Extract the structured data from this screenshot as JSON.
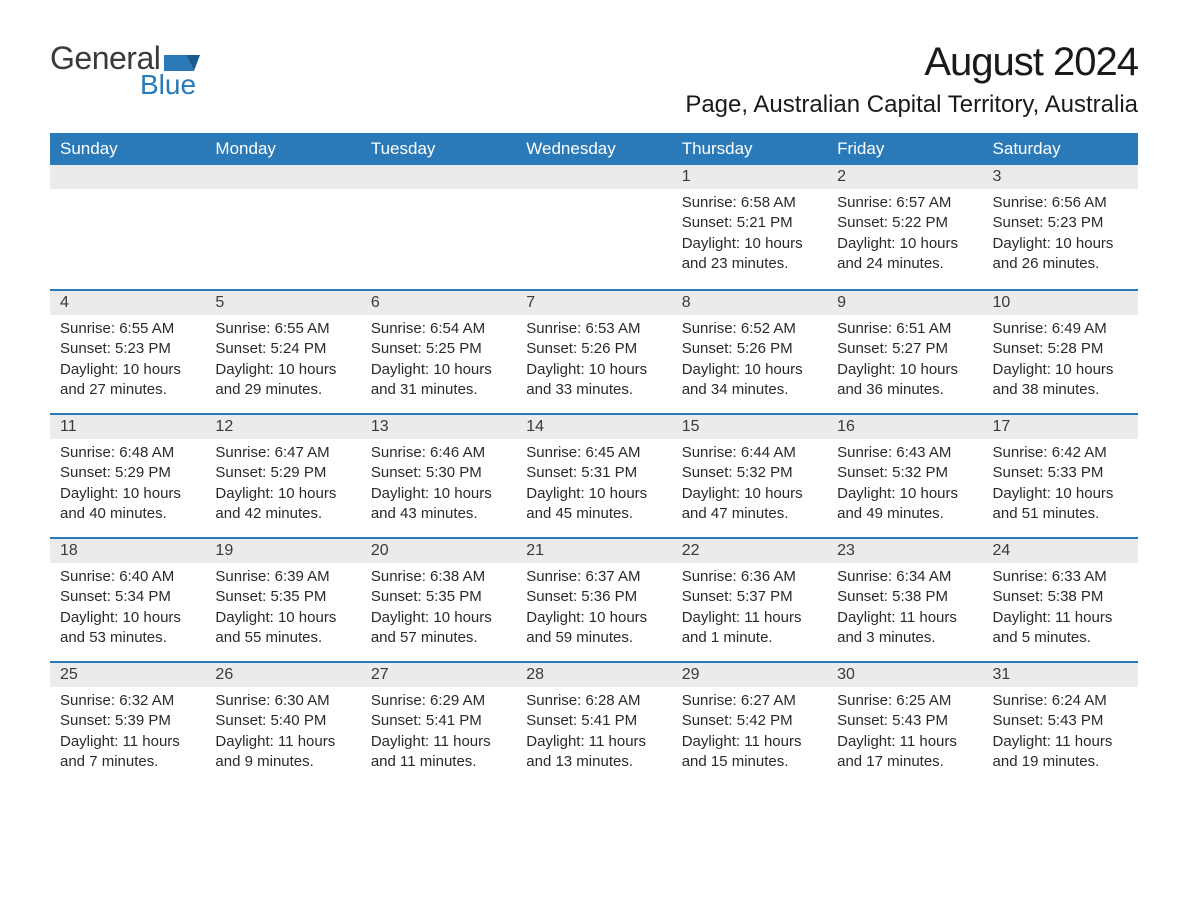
{
  "logo": {
    "text_top": "General",
    "text_bottom": "Blue",
    "icon_color": "#2a7ab9",
    "top_color": "#3a3a3a",
    "bottom_color": "#2a7ab9"
  },
  "title": "August 2024",
  "location": "Page, Australian Capital Territory, Australia",
  "colors": {
    "header_bg": "#2a7ab9",
    "header_text": "#ffffff",
    "daynum_bg": "#ebebeb",
    "week_divider": "#2a7ab9",
    "body_text": "#2a2a2a",
    "page_bg": "#ffffff"
  },
  "day_labels": [
    "Sunday",
    "Monday",
    "Tuesday",
    "Wednesday",
    "Thursday",
    "Friday",
    "Saturday"
  ],
  "weeks": [
    [
      {
        "day": "",
        "sunrise": "",
        "sunset": "",
        "daylight": ""
      },
      {
        "day": "",
        "sunrise": "",
        "sunset": "",
        "daylight": ""
      },
      {
        "day": "",
        "sunrise": "",
        "sunset": "",
        "daylight": ""
      },
      {
        "day": "",
        "sunrise": "",
        "sunset": "",
        "daylight": ""
      },
      {
        "day": "1",
        "sunrise": "Sunrise: 6:58 AM",
        "sunset": "Sunset: 5:21 PM",
        "daylight": "Daylight: 10 hours and 23 minutes."
      },
      {
        "day": "2",
        "sunrise": "Sunrise: 6:57 AM",
        "sunset": "Sunset: 5:22 PM",
        "daylight": "Daylight: 10 hours and 24 minutes."
      },
      {
        "day": "3",
        "sunrise": "Sunrise: 6:56 AM",
        "sunset": "Sunset: 5:23 PM",
        "daylight": "Daylight: 10 hours and 26 minutes."
      }
    ],
    [
      {
        "day": "4",
        "sunrise": "Sunrise: 6:55 AM",
        "sunset": "Sunset: 5:23 PM",
        "daylight": "Daylight: 10 hours and 27 minutes."
      },
      {
        "day": "5",
        "sunrise": "Sunrise: 6:55 AM",
        "sunset": "Sunset: 5:24 PM",
        "daylight": "Daylight: 10 hours and 29 minutes."
      },
      {
        "day": "6",
        "sunrise": "Sunrise: 6:54 AM",
        "sunset": "Sunset: 5:25 PM",
        "daylight": "Daylight: 10 hours and 31 minutes."
      },
      {
        "day": "7",
        "sunrise": "Sunrise: 6:53 AM",
        "sunset": "Sunset: 5:26 PM",
        "daylight": "Daylight: 10 hours and 33 minutes."
      },
      {
        "day": "8",
        "sunrise": "Sunrise: 6:52 AM",
        "sunset": "Sunset: 5:26 PM",
        "daylight": "Daylight: 10 hours and 34 minutes."
      },
      {
        "day": "9",
        "sunrise": "Sunrise: 6:51 AM",
        "sunset": "Sunset: 5:27 PM",
        "daylight": "Daylight: 10 hours and 36 minutes."
      },
      {
        "day": "10",
        "sunrise": "Sunrise: 6:49 AM",
        "sunset": "Sunset: 5:28 PM",
        "daylight": "Daylight: 10 hours and 38 minutes."
      }
    ],
    [
      {
        "day": "11",
        "sunrise": "Sunrise: 6:48 AM",
        "sunset": "Sunset: 5:29 PM",
        "daylight": "Daylight: 10 hours and 40 minutes."
      },
      {
        "day": "12",
        "sunrise": "Sunrise: 6:47 AM",
        "sunset": "Sunset: 5:29 PM",
        "daylight": "Daylight: 10 hours and 42 minutes."
      },
      {
        "day": "13",
        "sunrise": "Sunrise: 6:46 AM",
        "sunset": "Sunset: 5:30 PM",
        "daylight": "Daylight: 10 hours and 43 minutes."
      },
      {
        "day": "14",
        "sunrise": "Sunrise: 6:45 AM",
        "sunset": "Sunset: 5:31 PM",
        "daylight": "Daylight: 10 hours and 45 minutes."
      },
      {
        "day": "15",
        "sunrise": "Sunrise: 6:44 AM",
        "sunset": "Sunset: 5:32 PM",
        "daylight": "Daylight: 10 hours and 47 minutes."
      },
      {
        "day": "16",
        "sunrise": "Sunrise: 6:43 AM",
        "sunset": "Sunset: 5:32 PM",
        "daylight": "Daylight: 10 hours and 49 minutes."
      },
      {
        "day": "17",
        "sunrise": "Sunrise: 6:42 AM",
        "sunset": "Sunset: 5:33 PM",
        "daylight": "Daylight: 10 hours and 51 minutes."
      }
    ],
    [
      {
        "day": "18",
        "sunrise": "Sunrise: 6:40 AM",
        "sunset": "Sunset: 5:34 PM",
        "daylight": "Daylight: 10 hours and 53 minutes."
      },
      {
        "day": "19",
        "sunrise": "Sunrise: 6:39 AM",
        "sunset": "Sunset: 5:35 PM",
        "daylight": "Daylight: 10 hours and 55 minutes."
      },
      {
        "day": "20",
        "sunrise": "Sunrise: 6:38 AM",
        "sunset": "Sunset: 5:35 PM",
        "daylight": "Daylight: 10 hours and 57 minutes."
      },
      {
        "day": "21",
        "sunrise": "Sunrise: 6:37 AM",
        "sunset": "Sunset: 5:36 PM",
        "daylight": "Daylight: 10 hours and 59 minutes."
      },
      {
        "day": "22",
        "sunrise": "Sunrise: 6:36 AM",
        "sunset": "Sunset: 5:37 PM",
        "daylight": "Daylight: 11 hours and 1 minute."
      },
      {
        "day": "23",
        "sunrise": "Sunrise: 6:34 AM",
        "sunset": "Sunset: 5:38 PM",
        "daylight": "Daylight: 11 hours and 3 minutes."
      },
      {
        "day": "24",
        "sunrise": "Sunrise: 6:33 AM",
        "sunset": "Sunset: 5:38 PM",
        "daylight": "Daylight: 11 hours and 5 minutes."
      }
    ],
    [
      {
        "day": "25",
        "sunrise": "Sunrise: 6:32 AM",
        "sunset": "Sunset: 5:39 PM",
        "daylight": "Daylight: 11 hours and 7 minutes."
      },
      {
        "day": "26",
        "sunrise": "Sunrise: 6:30 AM",
        "sunset": "Sunset: 5:40 PM",
        "daylight": "Daylight: 11 hours and 9 minutes."
      },
      {
        "day": "27",
        "sunrise": "Sunrise: 6:29 AM",
        "sunset": "Sunset: 5:41 PM",
        "daylight": "Daylight: 11 hours and 11 minutes."
      },
      {
        "day": "28",
        "sunrise": "Sunrise: 6:28 AM",
        "sunset": "Sunset: 5:41 PM",
        "daylight": "Daylight: 11 hours and 13 minutes."
      },
      {
        "day": "29",
        "sunrise": "Sunrise: 6:27 AM",
        "sunset": "Sunset: 5:42 PM",
        "daylight": "Daylight: 11 hours and 15 minutes."
      },
      {
        "day": "30",
        "sunrise": "Sunrise: 6:25 AM",
        "sunset": "Sunset: 5:43 PM",
        "daylight": "Daylight: 11 hours and 17 minutes."
      },
      {
        "day": "31",
        "sunrise": "Sunrise: 6:24 AM",
        "sunset": "Sunset: 5:43 PM",
        "daylight": "Daylight: 11 hours and 19 minutes."
      }
    ]
  ]
}
